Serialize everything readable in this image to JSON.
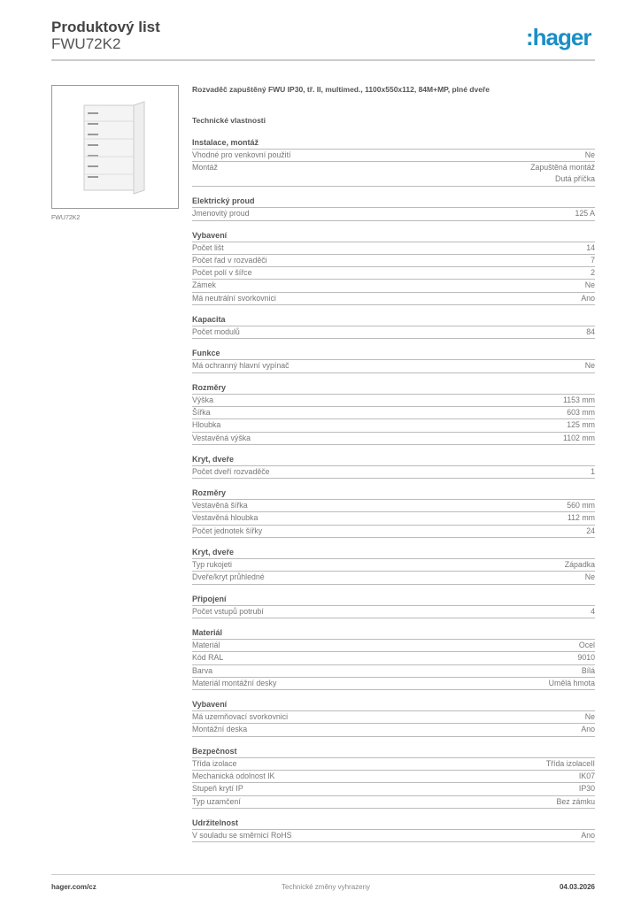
{
  "header": {
    "title": "Produktový list",
    "product_code": "FWU72K2",
    "logo": "hager",
    "brand_color": "#1a8ec6"
  },
  "image_caption": "FWU72K2",
  "description": "Rozvaděč zapuštěný FWU IP30, tř. II, multimed., 1100x550x112, 84M+MP, plné dveře",
  "tech_heading": "Technické vlastnosti",
  "sections": [
    {
      "title": "Instalace, montáž",
      "rows": [
        [
          "Vhodné pro venkovní použití",
          "Ne"
        ],
        [
          "Montáž",
          "Zapuštěná montáž\nDutá příčka"
        ]
      ]
    },
    {
      "title": "Elektrický proud",
      "rows": [
        [
          "Jmenovitý proud",
          "125 A"
        ]
      ]
    },
    {
      "title": "Vybavení",
      "rows": [
        [
          "Počet lišt",
          "14"
        ],
        [
          "Počet řad v rozvaděči",
          "7"
        ],
        [
          "Počet polí v šířce",
          "2"
        ],
        [
          "Zámek",
          "Ne"
        ],
        [
          "Má neutrální svorkovnici",
          "Ano"
        ]
      ]
    },
    {
      "title": "Kapacita",
      "rows": [
        [
          "Počet modulů",
          "84"
        ]
      ]
    },
    {
      "title": "Funkce",
      "rows": [
        [
          "Má ochranný hlavní vypínač",
          "Ne"
        ]
      ]
    },
    {
      "title": "Rozměry",
      "rows": [
        [
          "Výška",
          "1153 mm"
        ],
        [
          "Šířka",
          "603 mm"
        ],
        [
          "Hloubka",
          "125 mm"
        ],
        [
          "Vestavěná výška",
          "1102 mm"
        ]
      ]
    },
    {
      "title": "Kryt, dveře",
      "rows": [
        [
          "Počet dveří rozvaděče",
          "1"
        ]
      ]
    },
    {
      "title": "Rozměry",
      "rows": [
        [
          "Vestavěná šířka",
          "560 mm"
        ],
        [
          "Vestavěná hloubka",
          "112 mm"
        ],
        [
          "Počet jednotek šířky",
          "24"
        ]
      ]
    },
    {
      "title": "Kryt, dveře",
      "rows": [
        [
          "Typ rukojeti",
          "Západka"
        ],
        [
          "Dveře/kryt průhledné",
          "Ne"
        ]
      ]
    },
    {
      "title": "Připojení",
      "rows": [
        [
          "Počet vstupů potrubí",
          "4"
        ]
      ]
    },
    {
      "title": "Materiál",
      "rows": [
        [
          "Materiál",
          "Ocel"
        ],
        [
          "Kód RAL",
          "9010"
        ],
        [
          "Barva",
          "Bílá"
        ],
        [
          "Materiál montážní desky",
          "Umělá hmota"
        ]
      ]
    },
    {
      "title": "Vybavení",
      "rows": [
        [
          "Má uzemňovací svorkovnici",
          "Ne"
        ],
        [
          "Montážní deska",
          "Ano"
        ]
      ]
    },
    {
      "title": "Bezpečnost",
      "rows": [
        [
          "Třída izolace",
          "Třída izolaceII"
        ],
        [
          "Mechanická odolnost IK",
          "IK07"
        ],
        [
          "Stupeň krytí IP",
          "IP30"
        ],
        [
          "Typ uzamčení",
          "Bez zámku"
        ]
      ]
    },
    {
      "title": "Udržitelnost",
      "rows": [
        [
          "V souladu se směrnicí RoHS",
          "Ano"
        ]
      ]
    }
  ],
  "footer": {
    "website": "hager.com/cz",
    "note": "Technické změny vyhrazeny",
    "date": "04.03.2026"
  }
}
